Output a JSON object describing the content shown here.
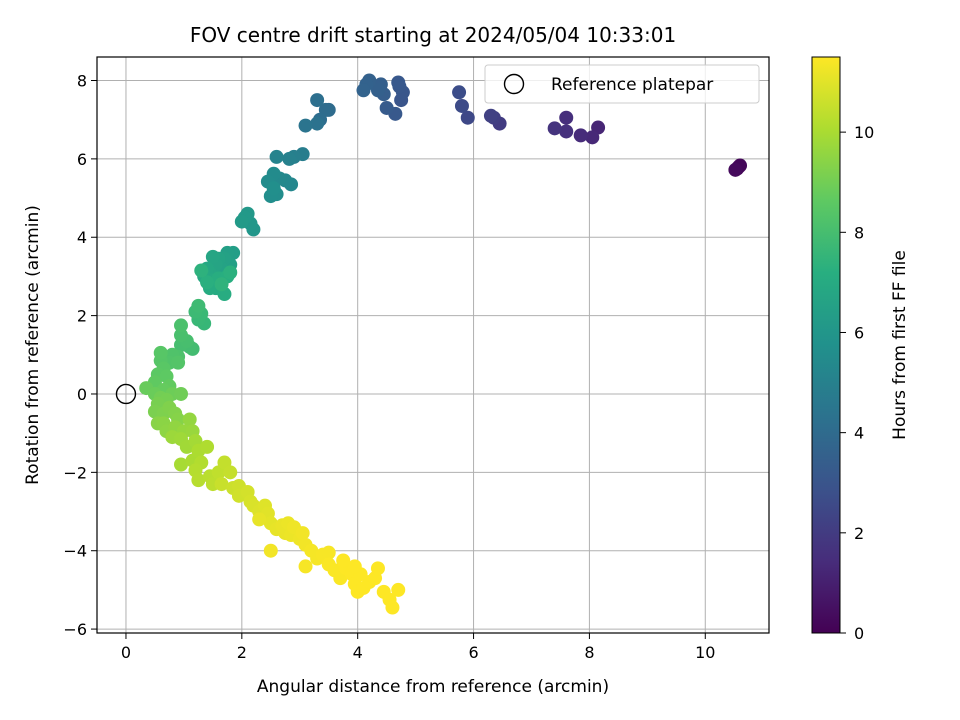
{
  "chart_data": {
    "type": "scatter",
    "title": "FOV centre drift starting at 2024/05/04 10:33:01",
    "xlabel": "Angular distance from reference (arcmin)",
    "ylabel": "Rotation from reference (arcmin)",
    "xlim": [
      -0.5,
      11.1
    ],
    "ylim": [
      -6.1,
      8.6
    ],
    "xticks": [
      0,
      2,
      4,
      6,
      8,
      10
    ],
    "yticks": [
      -6,
      -4,
      -2,
      0,
      2,
      4,
      6,
      8
    ],
    "grid": true,
    "legend": {
      "placement": "top-right",
      "entries": [
        "Reference platepar"
      ]
    },
    "reference_point": {
      "x": 0,
      "y": 0,
      "name": "Reference platepar"
    },
    "colorbar": {
      "label": "Hours from first FF file",
      "range": [
        0,
        11.5
      ],
      "ticks": [
        0,
        2,
        4,
        6,
        8,
        10
      ],
      "colormap": "viridis"
    },
    "series": [
      {
        "points": [
          [
            10.55,
            5.75,
            0.0
          ],
          [
            10.58,
            5.8,
            0.1
          ],
          [
            10.6,
            5.83,
            0.2
          ],
          [
            10.52,
            5.72,
            0.3
          ],
          [
            8.15,
            6.8,
            1.2
          ],
          [
            8.05,
            6.55,
            1.3
          ],
          [
            7.85,
            6.6,
            1.4
          ],
          [
            7.6,
            7.05,
            1.5
          ],
          [
            7.6,
            6.7,
            1.6
          ],
          [
            7.4,
            6.78,
            1.7
          ],
          [
            6.45,
            6.9,
            2.0
          ],
          [
            6.35,
            7.05,
            2.1
          ],
          [
            6.3,
            7.1,
            2.2
          ],
          [
            5.9,
            7.05,
            2.5
          ],
          [
            5.8,
            7.35,
            2.6
          ],
          [
            5.75,
            7.7,
            2.7
          ],
          [
            4.75,
            7.5,
            3.0
          ],
          [
            4.78,
            7.7,
            3.05
          ],
          [
            4.72,
            7.85,
            3.1
          ],
          [
            4.7,
            7.95,
            3.15
          ],
          [
            4.65,
            7.15,
            3.2
          ],
          [
            4.5,
            7.3,
            3.3
          ],
          [
            4.45,
            7.65,
            3.4
          ],
          [
            4.4,
            7.9,
            3.45
          ],
          [
            4.35,
            7.75,
            3.5
          ],
          [
            4.2,
            8.0,
            3.55
          ],
          [
            4.15,
            7.9,
            3.6
          ],
          [
            4.1,
            7.75,
            3.65
          ],
          [
            3.5,
            7.25,
            4.0
          ],
          [
            3.45,
            7.25,
            4.05
          ],
          [
            3.35,
            7.0,
            4.1
          ],
          [
            3.3,
            7.5,
            4.2
          ],
          [
            3.3,
            6.9,
            4.3
          ],
          [
            3.1,
            6.85,
            4.4
          ],
          [
            3.05,
            6.12,
            4.8
          ],
          [
            2.9,
            6.05,
            4.9
          ],
          [
            2.82,
            6.0,
            5.0
          ],
          [
            2.6,
            6.05,
            5.1
          ],
          [
            2.85,
            5.35,
            5.3
          ],
          [
            2.75,
            5.45,
            5.35
          ],
          [
            2.65,
            5.5,
            5.4
          ],
          [
            2.55,
            5.62,
            5.45
          ],
          [
            2.45,
            5.42,
            5.5
          ],
          [
            2.6,
            5.1,
            5.55
          ],
          [
            2.5,
            5.05,
            5.6
          ],
          [
            2.55,
            5.25,
            5.65
          ],
          [
            2.2,
            4.2,
            6.0
          ],
          [
            2.15,
            4.35,
            6.05
          ],
          [
            2.1,
            4.6,
            6.1
          ],
          [
            2.05,
            4.5,
            6.15
          ],
          [
            2.0,
            4.4,
            6.2
          ],
          [
            1.85,
            3.6,
            6.4
          ],
          [
            1.75,
            3.6,
            6.45
          ],
          [
            1.8,
            3.3,
            6.5
          ],
          [
            1.7,
            3.45,
            6.55
          ],
          [
            1.65,
            3.2,
            6.6
          ],
          [
            1.6,
            3.45,
            6.65
          ],
          [
            1.55,
            3.3,
            6.7
          ],
          [
            1.5,
            3.5,
            6.75
          ],
          [
            1.45,
            3.1,
            6.8
          ],
          [
            1.4,
            3.2,
            6.85
          ],
          [
            1.35,
            3.0,
            6.9
          ],
          [
            1.5,
            2.9,
            6.95
          ],
          [
            1.55,
            2.7,
            7.0
          ],
          [
            1.45,
            2.7,
            7.05
          ],
          [
            1.7,
            2.55,
            7.1
          ],
          [
            1.6,
            2.95,
            7.15
          ],
          [
            1.75,
            3.0,
            7.2
          ],
          [
            1.4,
            2.85,
            7.25
          ],
          [
            1.8,
            3.1,
            7.3
          ],
          [
            1.3,
            3.15,
            7.35
          ],
          [
            1.65,
            2.8,
            7.4
          ],
          [
            1.35,
            1.8,
            7.6
          ],
          [
            1.25,
            1.9,
            7.65
          ],
          [
            1.3,
            2.05,
            7.7
          ],
          [
            1.2,
            2.1,
            7.75
          ],
          [
            1.25,
            2.25,
            7.8
          ],
          [
            1.15,
            1.15,
            7.9
          ],
          [
            1.1,
            1.2,
            7.95
          ],
          [
            0.95,
            1.25,
            8.0
          ],
          [
            1.05,
            1.35,
            8.05
          ],
          [
            0.95,
            1.5,
            8.1
          ],
          [
            0.95,
            1.75,
            8.15
          ],
          [
            0.9,
            0.95,
            8.2
          ],
          [
            0.8,
            1.0,
            8.25
          ],
          [
            0.75,
            0.8,
            8.3
          ],
          [
            0.9,
            0.8,
            8.35
          ],
          [
            0.6,
            0.85,
            8.4
          ],
          [
            0.6,
            1.05,
            8.45
          ],
          [
            0.65,
            0.65,
            8.5
          ],
          [
            0.55,
            0.5,
            8.55
          ],
          [
            0.7,
            0.45,
            8.6
          ],
          [
            0.5,
            0.3,
            8.65
          ],
          [
            0.75,
            0.2,
            8.7
          ],
          [
            0.65,
            0.1,
            8.75
          ],
          [
            0.35,
            0.15,
            8.8
          ],
          [
            0.5,
            0.0,
            8.85
          ],
          [
            0.8,
            0.0,
            8.9
          ],
          [
            0.95,
            0.0,
            8.95
          ],
          [
            0.6,
            -0.1,
            9.0
          ],
          [
            0.7,
            -0.15,
            9.05
          ],
          [
            0.55,
            -0.25,
            9.1
          ],
          [
            0.5,
            -0.45,
            9.15
          ],
          [
            0.65,
            -0.5,
            9.2
          ],
          [
            0.75,
            -0.35,
            9.25
          ],
          [
            0.85,
            -0.5,
            9.3
          ],
          [
            0.9,
            -0.65,
            9.35
          ],
          [
            0.55,
            -0.75,
            9.4
          ],
          [
            0.65,
            -0.75,
            9.45
          ],
          [
            0.7,
            -0.95,
            9.5
          ],
          [
            0.85,
            -0.85,
            9.55
          ],
          [
            1.1,
            -0.65,
            9.6
          ],
          [
            1.0,
            -0.95,
            9.65
          ],
          [
            1.15,
            -0.95,
            9.7
          ],
          [
            0.8,
            -1.1,
            9.75
          ],
          [
            0.95,
            -1.15,
            9.8
          ],
          [
            1.05,
            -1.35,
            9.85
          ],
          [
            1.2,
            -1.2,
            9.9
          ],
          [
            0.95,
            -1.8,
            9.95
          ],
          [
            1.15,
            -1.7,
            10.0
          ],
          [
            1.25,
            -1.45,
            10.05
          ],
          [
            1.4,
            -1.35,
            10.1
          ],
          [
            1.3,
            -1.75,
            10.15
          ],
          [
            1.2,
            -1.95,
            10.2
          ],
          [
            1.25,
            -2.2,
            10.25
          ],
          [
            1.45,
            -2.1,
            10.3
          ],
          [
            1.5,
            -2.3,
            10.35
          ],
          [
            1.6,
            -2.0,
            10.4
          ],
          [
            1.7,
            -1.75,
            10.45
          ],
          [
            1.8,
            -2.0,
            10.5
          ],
          [
            1.65,
            -2.3,
            10.55
          ],
          [
            1.85,
            -2.4,
            10.6
          ],
          [
            1.95,
            -2.35,
            10.65
          ],
          [
            1.95,
            -2.6,
            10.7
          ],
          [
            2.1,
            -2.5,
            10.75
          ],
          [
            2.15,
            -2.75,
            10.8
          ],
          [
            2.2,
            -2.85,
            10.85
          ],
          [
            2.3,
            -3.0,
            10.9
          ],
          [
            2.4,
            -2.85,
            10.95
          ],
          [
            2.45,
            -3.05,
            11.0
          ],
          [
            2.5,
            -3.3,
            11.05
          ],
          [
            2.3,
            -3.2,
            11.1
          ],
          [
            2.6,
            -3.45,
            11.1
          ],
          [
            2.7,
            -3.35,
            11.15
          ],
          [
            2.75,
            -3.55,
            11.15
          ],
          [
            2.8,
            -3.3,
            11.2
          ],
          [
            2.85,
            -3.6,
            11.2
          ],
          [
            2.9,
            -3.4,
            11.25
          ],
          [
            3.0,
            -3.7,
            11.25
          ],
          [
            3.05,
            -3.55,
            11.3
          ],
          [
            3.1,
            -3.85,
            11.3
          ],
          [
            2.5,
            -4.0,
            11.3
          ],
          [
            3.2,
            -4.0,
            11.35
          ],
          [
            3.3,
            -4.2,
            11.35
          ],
          [
            3.4,
            -4.1,
            11.4
          ],
          [
            3.5,
            -4.05,
            11.4
          ],
          [
            3.1,
            -4.4,
            11.4
          ],
          [
            3.5,
            -4.35,
            11.45
          ],
          [
            3.6,
            -4.5,
            11.45
          ],
          [
            3.7,
            -4.7,
            11.45
          ],
          [
            3.8,
            -4.45,
            11.5
          ],
          [
            3.9,
            -4.6,
            11.5
          ],
          [
            3.95,
            -4.85,
            11.5
          ],
          [
            4.0,
            -5.05,
            11.5
          ],
          [
            4.1,
            -4.95,
            11.5
          ],
          [
            4.2,
            -4.8,
            11.5
          ],
          [
            4.3,
            -4.7,
            11.5
          ],
          [
            4.35,
            -4.45,
            11.5
          ],
          [
            4.45,
            -5.05,
            11.5
          ],
          [
            4.55,
            -5.25,
            11.5
          ],
          [
            4.6,
            -5.45,
            11.5
          ],
          [
            4.7,
            -5.0,
            11.5
          ],
          [
            4.05,
            -4.6,
            11.5
          ],
          [
            3.95,
            -4.4,
            11.5
          ],
          [
            3.75,
            -4.25,
            11.5
          ]
        ]
      }
    ]
  }
}
